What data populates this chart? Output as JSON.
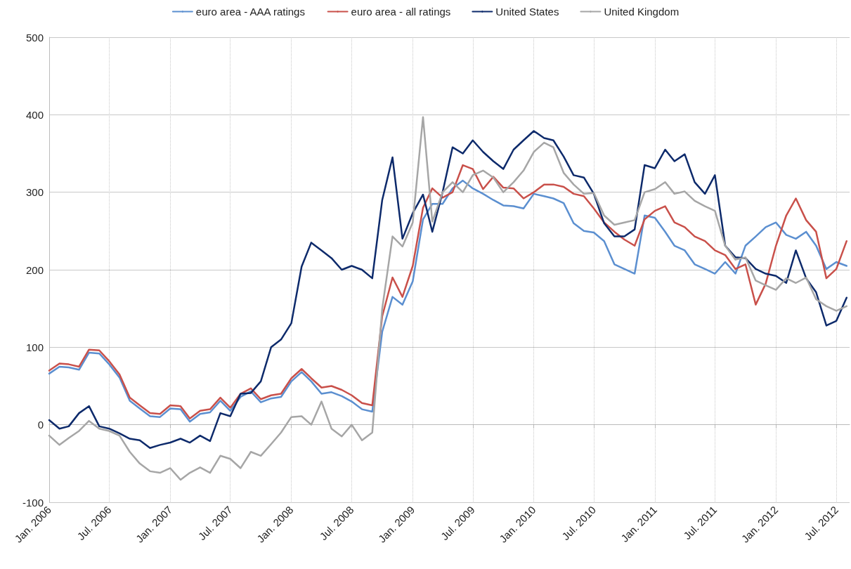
{
  "chart_data": {
    "type": "line",
    "x": [
      "2006-01",
      "2006-02",
      "2006-03",
      "2006-04",
      "2006-05",
      "2006-06",
      "2006-07",
      "2006-08",
      "2006-09",
      "2006-10",
      "2006-11",
      "2006-12",
      "2007-01",
      "2007-02",
      "2007-03",
      "2007-04",
      "2007-05",
      "2007-06",
      "2007-07",
      "2007-08",
      "2007-09",
      "2007-10",
      "2007-11",
      "2007-12",
      "2008-01",
      "2008-02",
      "2008-03",
      "2008-04",
      "2008-05",
      "2008-06",
      "2008-07",
      "2008-08",
      "2008-09",
      "2008-10",
      "2008-11",
      "2008-12",
      "2009-01",
      "2009-02",
      "2009-03",
      "2009-04",
      "2009-05",
      "2009-06",
      "2009-07",
      "2009-08",
      "2009-09",
      "2009-10",
      "2009-11",
      "2009-12",
      "2010-01",
      "2010-02",
      "2010-03",
      "2010-04",
      "2010-05",
      "2010-06",
      "2010-07",
      "2010-08",
      "2010-09",
      "2010-10",
      "2010-11",
      "2010-12",
      "2011-01",
      "2011-02",
      "2011-03",
      "2011-04",
      "2011-05",
      "2011-06",
      "2011-07",
      "2011-08",
      "2011-09",
      "2011-10",
      "2011-11",
      "2011-12",
      "2012-01",
      "2012-02",
      "2012-03",
      "2012-04",
      "2012-05",
      "2012-06",
      "2012-07",
      "2012-08"
    ],
    "series": [
      {
        "name": "euro area - AAA ratings",
        "color": "#5b8fd0",
        "values": [
          66,
          75,
          74,
          71,
          93,
          92,
          78,
          61,
          31,
          21,
          11,
          10,
          21,
          20,
          4,
          14,
          16,
          31,
          18,
          36,
          43,
          29,
          34,
          36,
          56,
          68,
          56,
          40,
          42,
          37,
          30,
          20,
          17,
          120,
          165,
          155,
          185,
          265,
          285,
          285,
          305,
          315,
          305,
          298,
          290,
          283,
          282,
          279,
          298,
          295,
          292,
          286,
          260,
          250,
          248,
          237,
          207,
          201,
          195,
          270,
          267,
          249,
          231,
          225,
          207,
          201,
          195,
          210,
          195,
          231,
          243,
          255,
          261,
          245,
          240,
          249,
          231,
          201,
          210,
          205
        ]
      },
      {
        "name": "euro area - all ratings",
        "color": "#c9504a",
        "values": [
          70,
          79,
          78,
          75,
          97,
          96,
          82,
          65,
          35,
          25,
          15,
          14,
          25,
          24,
          8,
          18,
          20,
          35,
          22,
          40,
          47,
          33,
          38,
          40,
          60,
          72,
          60,
          48,
          50,
          45,
          38,
          28,
          25,
          140,
          190,
          165,
          205,
          280,
          305,
          293,
          300,
          335,
          330,
          304,
          320,
          306,
          305,
          292,
          300,
          310,
          310,
          307,
          298,
          295,
          279,
          261,
          249,
          239,
          231,
          265,
          276,
          282,
          261,
          255,
          243,
          237,
          225,
          219,
          201,
          207,
          155,
          182,
          231,
          270,
          292,
          264,
          249,
          189,
          201,
          237
        ]
      },
      {
        "name": "United States",
        "color": "#0d2a6b",
        "values": [
          6,
          -5,
          -2,
          15,
          24,
          -2,
          -5,
          -11,
          -18,
          -20,
          -30,
          -26,
          -23,
          -18,
          -23,
          -14,
          -21,
          15,
          11,
          40,
          41,
          56,
          100,
          110,
          131,
          204,
          235,
          225,
          215,
          200,
          205,
          200,
          189,
          290,
          345,
          240,
          273,
          297,
          249,
          300,
          358,
          350,
          367,
          352,
          340,
          330,
          355,
          367,
          379,
          370,
          367,
          346,
          322,
          319,
          298,
          260,
          243,
          243,
          252,
          335,
          331,
          355,
          340,
          349,
          313,
          298,
          322,
          231,
          216,
          215,
          201,
          195,
          192,
          183,
          225,
          189,
          171,
          128,
          134,
          164
        ]
      },
      {
        "name": "United Kingdom",
        "color": "#a6a6a6",
        "values": [
          -14,
          -26,
          -17,
          -8,
          5,
          -5,
          -8,
          -14,
          -35,
          -50,
          -60,
          -62,
          -56,
          -71,
          -62,
          -55,
          -62,
          -40,
          -44,
          -56,
          -35,
          -40,
          -25,
          -10,
          10,
          11,
          0,
          30,
          -5,
          -15,
          0,
          -20,
          -10,
          150,
          243,
          230,
          261,
          397,
          262,
          300,
          313,
          300,
          322,
          328,
          319,
          300,
          313,
          328,
          352,
          364,
          358,
          325,
          310,
          298,
          299,
          270,
          258,
          261,
          264,
          300,
          304,
          313,
          298,
          301,
          289,
          282,
          276,
          231,
          213,
          216,
          186,
          180,
          174,
          189,
          183,
          190,
          162,
          153,
          147,
          153
        ]
      }
    ],
    "xlim": [
      "2006-01",
      "2012-08-10"
    ],
    "xticks": [
      {
        "value": "2006-01",
        "label": "Jan. 2006"
      },
      {
        "value": "2006-07",
        "label": "Jul. 2006"
      },
      {
        "value": "2007-01",
        "label": "Jan. 2007"
      },
      {
        "value": "2007-07",
        "label": "Jul. 2007"
      },
      {
        "value": "2008-01",
        "label": "Jan. 2008"
      },
      {
        "value": "2008-07",
        "label": "Jul. 2008"
      },
      {
        "value": "2009-01",
        "label": "Jan. 2009"
      },
      {
        "value": "2009-07",
        "label": "Jul. 2009"
      },
      {
        "value": "2010-01",
        "label": "Jan. 2010"
      },
      {
        "value": "2010-07",
        "label": "Jul. 2010"
      },
      {
        "value": "2011-01",
        "label": "Jan. 2011"
      },
      {
        "value": "2011-07",
        "label": "Jul. 2011"
      },
      {
        "value": "2012-01",
        "label": "Jan. 2012"
      },
      {
        "value": "2012-07",
        "label": "Jul. 2012"
      }
    ],
    "ylim": [
      -100,
      500
    ],
    "yticks": [
      -100,
      0,
      100,
      200,
      300,
      400,
      500
    ],
    "grid": true,
    "legend": "top",
    "marker": "none",
    "line_style": "solid"
  }
}
